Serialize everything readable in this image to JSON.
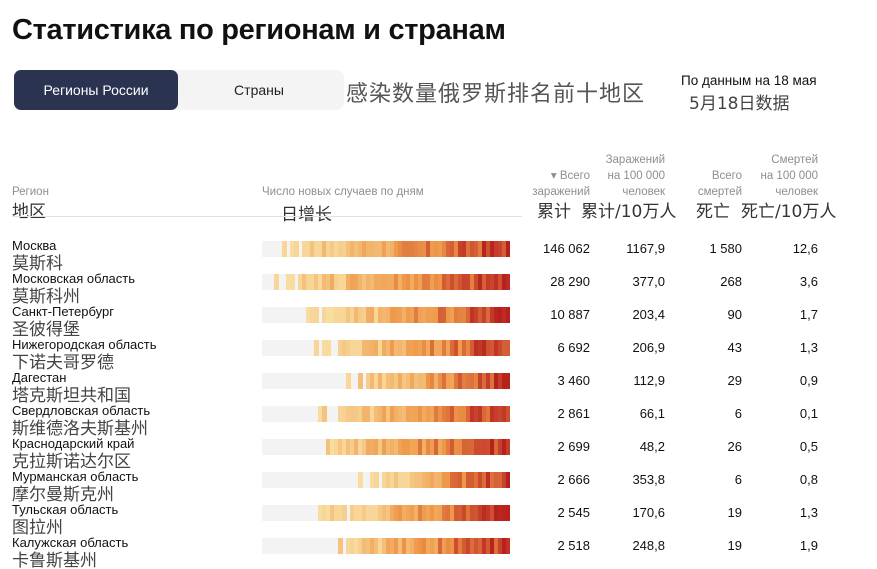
{
  "title": "Статистика по регионам и странам",
  "tabs": [
    {
      "label": "Регионы России",
      "active": true
    },
    {
      "label": "Страны",
      "active": false
    }
  ],
  "annotation_cn": "感染数量俄罗斯排名前十地区",
  "date": {
    "ru": "По данным на 18 мая",
    "cn": "5月18日数据"
  },
  "headers": {
    "region": {
      "ru": "Регион",
      "cn": "地区"
    },
    "daily": {
      "ru": "Число новых случаев по дням",
      "cn": "日增长"
    },
    "total": {
      "ru1": "▾ Всего",
      "ru2": "заражений",
      "cn": "累计"
    },
    "per100k": {
      "ru1": "Заражений",
      "ru2": "на 100 000",
      "ru3": "человек",
      "cn": "累计/10万人"
    },
    "deaths": {
      "ru1": "Всего",
      "ru2": "смертей",
      "cn": "死亡"
    },
    "deaths100k": {
      "ru1": "Смертей",
      "ru2": "на 100 000",
      "ru3": "человек",
      "cn": "死亡/10万人"
    }
  },
  "colors": {
    "tab_active": "#2a3350",
    "heat_low": "#f8dca0",
    "heat_mid": "#ef9a4a",
    "heat_high": "#b8201e"
  },
  "rows": [
    {
      "name": "Москва",
      "cn": "莫斯科",
      "total": "146 062",
      "per100k": "1167,9",
      "deaths": "1 580",
      "deaths100k": "12,6",
      "start": 0.07
    },
    {
      "name": "Московская область",
      "cn": "莫斯科州",
      "total": "28 290",
      "per100k": "377,0",
      "deaths": "268",
      "deaths100k": "3,6",
      "start": 0.02
    },
    {
      "name": "Санкт-Петербург",
      "cn": "圣彼得堡",
      "total": "10 887",
      "per100k": "203,4",
      "deaths": "90",
      "deaths100k": "1,7",
      "start": 0.16
    },
    {
      "name": "Нижегородская область",
      "cn": "下诺夫哥罗德",
      "total": "6 692",
      "per100k": "206,9",
      "deaths": "43",
      "deaths100k": "1,3",
      "start": 0.2
    },
    {
      "name": "Дагестан",
      "cn": "塔克斯坦共和国",
      "total": "3 460",
      "per100k": "112,9",
      "deaths": "29",
      "deaths100k": "0,9",
      "start": 0.33
    },
    {
      "name": "Свердловская область",
      "cn": "斯维德洛夫斯基州",
      "total": "2 861",
      "per100k": "66,1",
      "deaths": "6",
      "deaths100k": "0,1",
      "start": 0.2
    },
    {
      "name": "Краснодарский край",
      "cn": "克拉斯诺达尔区",
      "total": "2 699",
      "per100k": "48,2",
      "deaths": "26",
      "deaths100k": "0,5",
      "start": 0.19
    },
    {
      "name": "Мурманская область",
      "cn": "摩尔曼斯克州",
      "total": "2 666",
      "per100k": "353,8",
      "deaths": "6",
      "deaths100k": "0,8",
      "start": 0.38
    },
    {
      "name": "Тульская область",
      "cn": "图拉州",
      "total": "2 545",
      "per100k": "170,6",
      "deaths": "19",
      "deaths100k": "1,3",
      "start": 0.22
    },
    {
      "name": "Калужская область",
      "cn": "卡鲁斯基州",
      "total": "2 518",
      "per100k": "248,8",
      "deaths": "19",
      "deaths100k": "1,9",
      "start": 0.23
    }
  ]
}
